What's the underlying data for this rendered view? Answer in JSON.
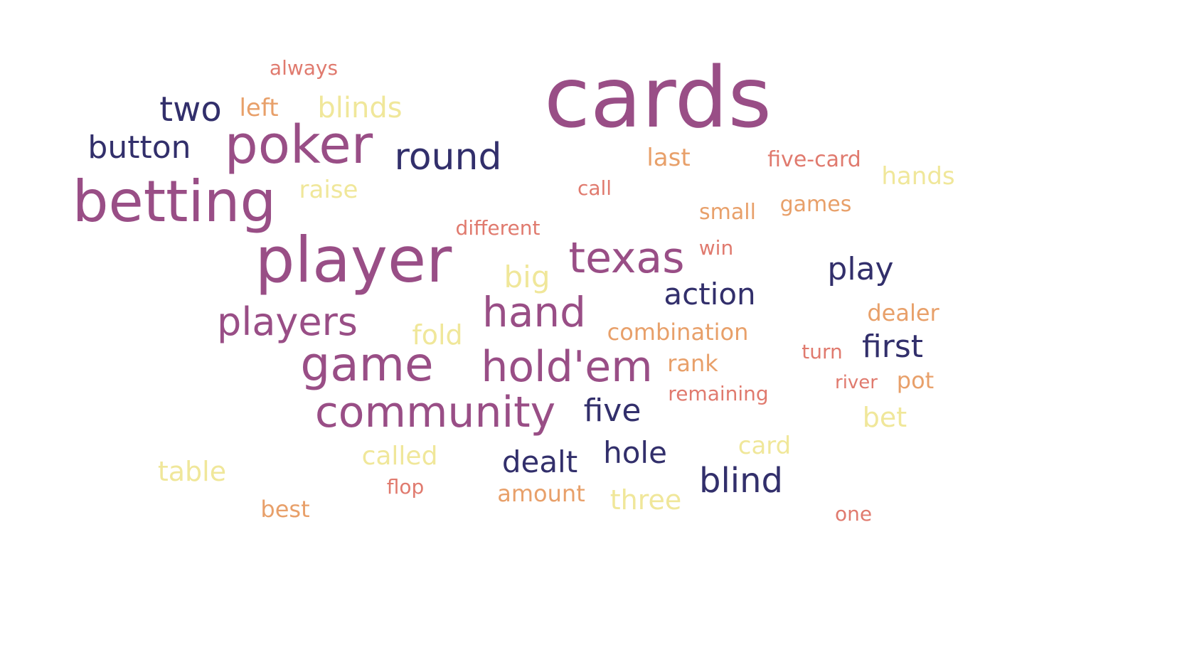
{
  "palette": {
    "plum": "#994e86",
    "navy": "#322f6b",
    "salmon": "#e07a6e",
    "peach": "#e8a06a",
    "yellow": "#f0e79a"
  },
  "words": [
    {
      "text": "cards",
      "color": "plum"
    },
    {
      "text": "player",
      "color": "plum"
    },
    {
      "text": "betting",
      "color": "plum"
    },
    {
      "text": "poker",
      "color": "plum"
    },
    {
      "text": "game",
      "color": "plum"
    },
    {
      "text": "hold'em",
      "color": "plum"
    },
    {
      "text": "community",
      "color": "plum"
    },
    {
      "text": "texas",
      "color": "plum"
    },
    {
      "text": "hand",
      "color": "plum"
    },
    {
      "text": "players",
      "color": "plum"
    },
    {
      "text": "round",
      "color": "navy"
    },
    {
      "text": "two",
      "color": "navy"
    },
    {
      "text": "button",
      "color": "navy"
    },
    {
      "text": "play",
      "color": "navy"
    },
    {
      "text": "action",
      "color": "navy"
    },
    {
      "text": "first",
      "color": "navy"
    },
    {
      "text": "five",
      "color": "navy"
    },
    {
      "text": "hole",
      "color": "navy"
    },
    {
      "text": "dealt",
      "color": "navy"
    },
    {
      "text": "blind",
      "color": "navy"
    },
    {
      "text": "blinds",
      "color": "yellow"
    },
    {
      "text": "raise",
      "color": "yellow"
    },
    {
      "text": "big",
      "color": "yellow"
    },
    {
      "text": "fold",
      "color": "yellow"
    },
    {
      "text": "hands",
      "color": "yellow"
    },
    {
      "text": "bet",
      "color": "yellow"
    },
    {
      "text": "card",
      "color": "yellow"
    },
    {
      "text": "called",
      "color": "yellow"
    },
    {
      "text": "table",
      "color": "yellow"
    },
    {
      "text": "three",
      "color": "yellow"
    },
    {
      "text": "always",
      "color": "salmon"
    },
    {
      "text": "call",
      "color": "salmon"
    },
    {
      "text": "five-card",
      "color": "salmon"
    },
    {
      "text": "different",
      "color": "salmon"
    },
    {
      "text": "win",
      "color": "salmon"
    },
    {
      "text": "turn",
      "color": "salmon"
    },
    {
      "text": "river",
      "color": "salmon"
    },
    {
      "text": "remaining",
      "color": "salmon"
    },
    {
      "text": "flop",
      "color": "salmon"
    },
    {
      "text": "one",
      "color": "salmon"
    },
    {
      "text": "left",
      "color": "peach"
    },
    {
      "text": "last",
      "color": "peach"
    },
    {
      "text": "small",
      "color": "peach"
    },
    {
      "text": "games",
      "color": "peach"
    },
    {
      "text": "combination",
      "color": "peach"
    },
    {
      "text": "dealer",
      "color": "peach"
    },
    {
      "text": "rank",
      "color": "peach"
    },
    {
      "text": "pot",
      "color": "peach"
    },
    {
      "text": "amount",
      "color": "peach"
    },
    {
      "text": "best",
      "color": "peach"
    }
  ]
}
